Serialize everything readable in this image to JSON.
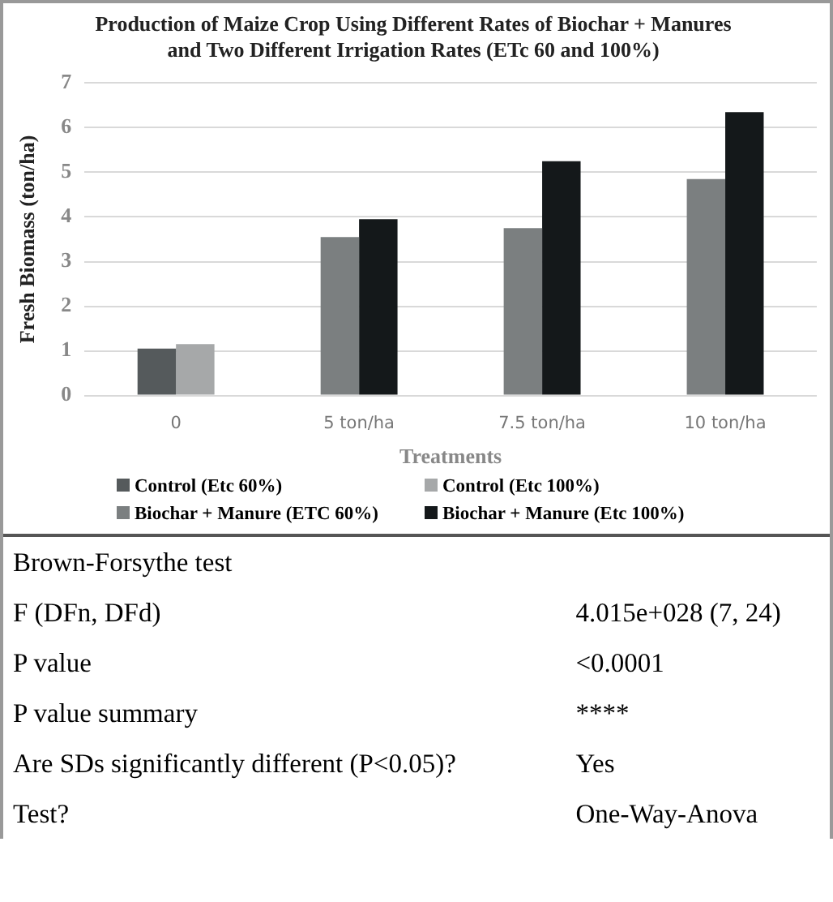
{
  "chart_data": {
    "type": "bar",
    "title": "Production of Maize Crop Using Different Rates of Biochar + Manures and Two Different Irrigation Rates (ETc 60 and 100%)",
    "xlabel": "Treatments",
    "ylabel": "Fresh Biomass (ton/ha)",
    "categories": [
      "0",
      "5 ton/ha",
      "7.5 ton/ha",
      "10 ton/ha"
    ],
    "series": [
      {
        "name": "Control (Etc 60%)",
        "color": "#555a5c",
        "values": [
          1.05,
          null,
          null,
          null
        ]
      },
      {
        "name": "Control (Etc 100%)",
        "color": "#a6a8a9",
        "values": [
          1.15,
          null,
          null,
          null
        ]
      },
      {
        "name": "Biochar + Manure (ETC 60%)",
        "color": "#7b7f80",
        "values": [
          null,
          3.55,
          3.75,
          4.85
        ]
      },
      {
        "name": "Biochar +  Manure (Etc 100%)",
        "color": "#14181a",
        "values": [
          null,
          3.95,
          5.25,
          6.35
        ]
      }
    ],
    "ylim": [
      0,
      7
    ],
    "yticks": [
      0,
      1,
      2,
      3,
      4,
      5,
      6,
      7
    ],
    "grid": "y",
    "legend": "bottom",
    "annotations": [
      "Brown-Forsythe test",
      "F (DFn, DFd)",
      "4.015e+028 (7, 24)",
      "P value",
      "<0.0001",
      "P value summary",
      "****",
      "Are SDs significantly different (P<0.05)?",
      "Yes",
      "Test?",
      "One-Way-Anova"
    ]
  }
}
